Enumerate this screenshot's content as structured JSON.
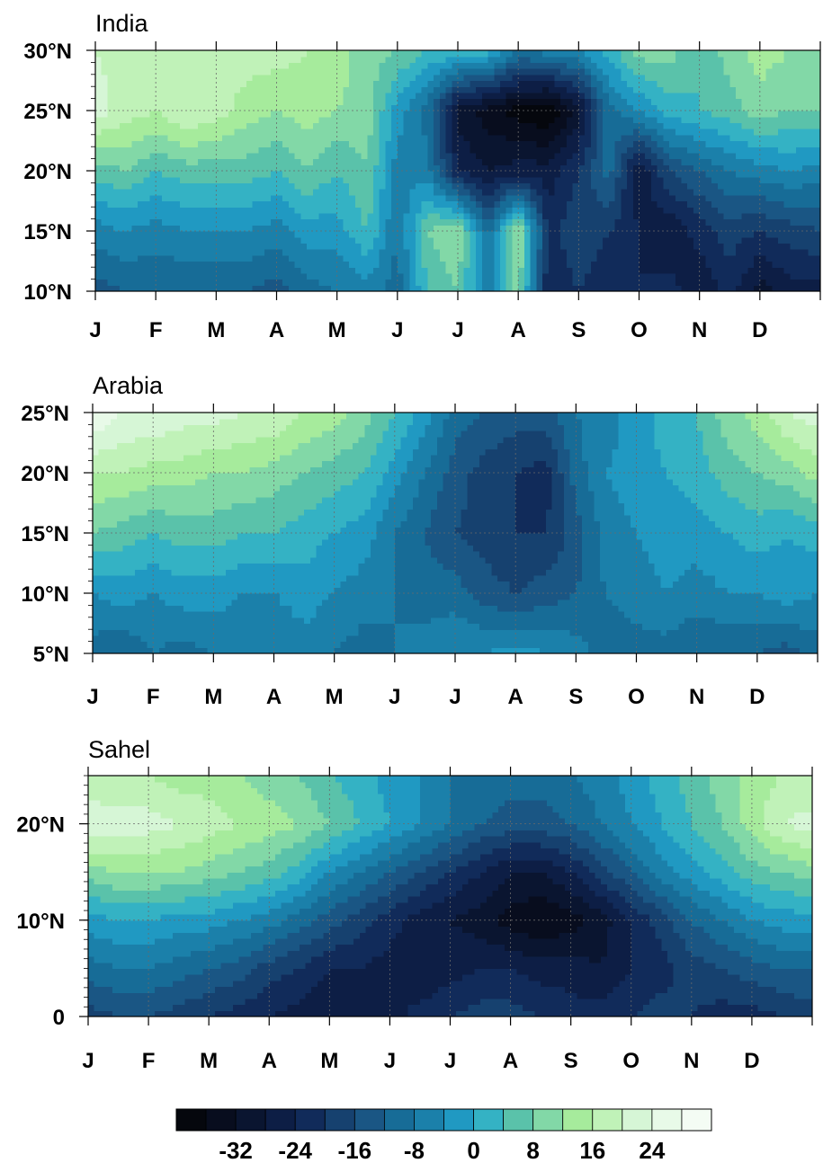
{
  "chart_data": [
    {
      "type": "heatmap",
      "title": "India",
      "xlabel": "",
      "ylabel": "",
      "x_tick_labels": [
        "J",
        "F",
        "M",
        "A",
        "M",
        "J",
        "J",
        "A",
        "S",
        "O",
        "N",
        "D"
      ],
      "y_tick_labels": [
        "10°N",
        "15°N",
        "20°N",
        "25°N",
        "30°N"
      ],
      "y_values": [
        10,
        15,
        20,
        25,
        30
      ],
      "ylim": [
        10,
        30
      ],
      "grid": true,
      "x": [
        0,
        0.5,
        1,
        1.5,
        2,
        2.5,
        3,
        3.5,
        4,
        4.5,
        5,
        5.5,
        6,
        6.5,
        7,
        7.5,
        8,
        8.5,
        9,
        9.5,
        10,
        10.5,
        11,
        11.5,
        12
      ],
      "rows": [
        {
          "lat": 10,
          "values": [
            -14,
            -12,
            -12,
            -12,
            -12,
            -12,
            -14,
            -10,
            -8,
            -6,
            -10,
            4,
            8,
            -8,
            10,
            -24,
            -20,
            -24,
            -24,
            -22,
            -28,
            -22,
            -30,
            -26,
            -26
          ]
        },
        {
          "lat": 15,
          "values": [
            -6,
            -4,
            -6,
            -4,
            -4,
            -4,
            -6,
            -2,
            -2,
            4,
            -8,
            8,
            12,
            -10,
            14,
            -22,
            -16,
            -20,
            -24,
            -28,
            -22,
            -18,
            -20,
            -18,
            -16
          ]
        },
        {
          "lat": 20,
          "values": [
            6,
            8,
            4,
            6,
            6,
            6,
            4,
            8,
            4,
            8,
            -6,
            -6,
            -24,
            -28,
            -26,
            -26,
            -20,
            -10,
            -28,
            -16,
            -12,
            -8,
            -6,
            -4,
            -6
          ]
        },
        {
          "lat": 25,
          "values": [
            22,
            18,
            16,
            20,
            18,
            14,
            12,
            14,
            12,
            10,
            -2,
            -10,
            -30,
            -34,
            -38,
            -40,
            -30,
            -10,
            -4,
            2,
            4,
            6,
            10,
            8,
            8
          ]
        },
        {
          "lat": 30,
          "values": [
            20,
            18,
            20,
            20,
            18,
            18,
            18,
            16,
            14,
            10,
            8,
            4,
            4,
            2,
            -8,
            -6,
            -4,
            2,
            10,
            10,
            4,
            10,
            14,
            12,
            12
          ]
        }
      ]
    },
    {
      "type": "heatmap",
      "title": "Arabia",
      "xlabel": "",
      "ylabel": "",
      "x_tick_labels": [
        "J",
        "F",
        "M",
        "A",
        "M",
        "J",
        "J",
        "A",
        "S",
        "O",
        "N",
        "D"
      ],
      "y_tick_labels": [
        "5°N",
        "10°N",
        "15°N",
        "20°N",
        "25°N"
      ],
      "y_values": [
        5,
        10,
        15,
        20,
        25
      ],
      "ylim": [
        5,
        25
      ],
      "grid": true,
      "x": [
        0,
        0.5,
        1,
        1.5,
        2,
        2.5,
        3,
        3.5,
        4,
        4.5,
        5,
        5.5,
        6,
        6.5,
        7,
        7.5,
        8,
        8.5,
        9,
        9.5,
        10,
        10.5,
        11,
        11.5,
        12
      ],
      "rows": [
        {
          "lat": 5,
          "values": [
            -10,
            -12,
            -8,
            -10,
            -8,
            -8,
            -8,
            -6,
            -8,
            -10,
            -8,
            -6,
            -4,
            -4,
            -2,
            -4,
            -6,
            -10,
            -10,
            -10,
            -12,
            -12,
            -12,
            -14,
            -10
          ]
        },
        {
          "lat": 10,
          "values": [
            -4,
            -2,
            -4,
            -2,
            -2,
            -4,
            -4,
            -2,
            -4,
            -6,
            -8,
            -10,
            -10,
            -14,
            -16,
            -14,
            -12,
            -8,
            -6,
            -4,
            -6,
            -4,
            -4,
            -2,
            -4
          ]
        },
        {
          "lat": 15,
          "values": [
            8,
            6,
            4,
            6,
            6,
            4,
            4,
            2,
            0,
            -2,
            -8,
            -12,
            -16,
            -18,
            -20,
            -20,
            -14,
            -6,
            -4,
            -2,
            -2,
            0,
            2,
            0,
            2
          ]
        },
        {
          "lat": 20,
          "values": [
            16,
            16,
            14,
            14,
            12,
            12,
            10,
            8,
            6,
            4,
            -2,
            -8,
            -14,
            -18,
            -20,
            -22,
            -10,
            -4,
            -2,
            0,
            2,
            6,
            8,
            10,
            14
          ]
        },
        {
          "lat": 25,
          "values": [
            28,
            24,
            24,
            22,
            22,
            20,
            20,
            16,
            14,
            10,
            4,
            -2,
            -10,
            -12,
            -14,
            -14,
            -8,
            -6,
            -2,
            2,
            4,
            10,
            14,
            20,
            22
          ]
        }
      ]
    },
    {
      "type": "heatmap",
      "title": "Sahel",
      "xlabel": "",
      "ylabel": "",
      "x_tick_labels": [
        "J",
        "F",
        "M",
        "A",
        "M",
        "J",
        "J",
        "A",
        "S",
        "O",
        "N",
        "D"
      ],
      "y_tick_labels": [
        "0",
        "10°N",
        "20°N"
      ],
      "y_values": [
        0,
        10,
        20
      ],
      "ylim": [
        0,
        25
      ],
      "grid": true,
      "x": [
        0,
        0.5,
        1,
        1.5,
        2,
        2.5,
        3,
        3.5,
        4,
        4.5,
        5,
        5.5,
        6,
        6.5,
        7,
        7.5,
        8,
        8.5,
        9,
        9.5,
        10,
        10.5,
        11,
        11.5,
        12
      ],
      "rows": [
        {
          "lat": 0,
          "values": [
            -18,
            -16,
            -16,
            -18,
            -20,
            -22,
            -24,
            -26,
            -28,
            -28,
            -26,
            -22,
            -20,
            -18,
            -18,
            -20,
            -22,
            -22,
            -20,
            -18,
            -20,
            -22,
            -22,
            -20,
            -18
          ]
        },
        {
          "lat": 5,
          "values": [
            -10,
            -8,
            -8,
            -10,
            -12,
            -14,
            -18,
            -20,
            -24,
            -24,
            -26,
            -28,
            -26,
            -24,
            -24,
            -26,
            -26,
            -28,
            -24,
            -22,
            -18,
            -16,
            -14,
            -12,
            -12
          ]
        },
        {
          "lat": 10,
          "values": [
            -2,
            0,
            0,
            -2,
            -2,
            -4,
            -6,
            -10,
            -14,
            -18,
            -22,
            -26,
            -28,
            -30,
            -34,
            -36,
            -34,
            -30,
            -24,
            -18,
            -12,
            -8,
            -4,
            -2,
            -2
          ]
        },
        {
          "lat": 15,
          "values": [
            10,
            12,
            12,
            12,
            10,
            8,
            6,
            2,
            -4,
            -8,
            -12,
            -16,
            -20,
            -24,
            -28,
            -28,
            -24,
            -18,
            -12,
            -6,
            -2,
            2,
            6,
            8,
            10
          ]
        },
        {
          "lat": 20,
          "values": [
            24,
            22,
            22,
            20,
            18,
            16,
            14,
            12,
            8,
            4,
            0,
            -4,
            -8,
            -12,
            -14,
            -14,
            -12,
            -8,
            -4,
            0,
            4,
            8,
            14,
            20,
            22
          ]
        },
        {
          "lat": 25,
          "values": [
            16,
            16,
            16,
            14,
            14,
            12,
            10,
            8,
            4,
            2,
            -2,
            -4,
            -8,
            -8,
            -10,
            -10,
            -8,
            -6,
            -2,
            2,
            6,
            10,
            14,
            16,
            16
          ]
        }
      ]
    }
  ],
  "colorbar": {
    "levels": [
      -36,
      -32,
      -28,
      -24,
      -20,
      -16,
      -12,
      -8,
      -4,
      0,
      4,
      8,
      12,
      16,
      20,
      24,
      28
    ],
    "tick_labels": [
      "-32",
      "-24",
      "-16",
      "-8",
      "0",
      "8",
      "16",
      "24"
    ],
    "tick_values": [
      -32,
      -24,
      -16,
      -8,
      0,
      8,
      16,
      24
    ],
    "colors": [
      "#05070d",
      "#080d1e",
      "#0a1530",
      "#0d1e45",
      "#112b5a",
      "#16416f",
      "#1a5684",
      "#176c97",
      "#1b80aa",
      "#2099c2",
      "#34b2c4",
      "#5ac2aa",
      "#82d8a7",
      "#a6eb9c",
      "#c0f2b8",
      "#d6f6d6",
      "#e8fae8",
      "#f4fcf4"
    ]
  }
}
